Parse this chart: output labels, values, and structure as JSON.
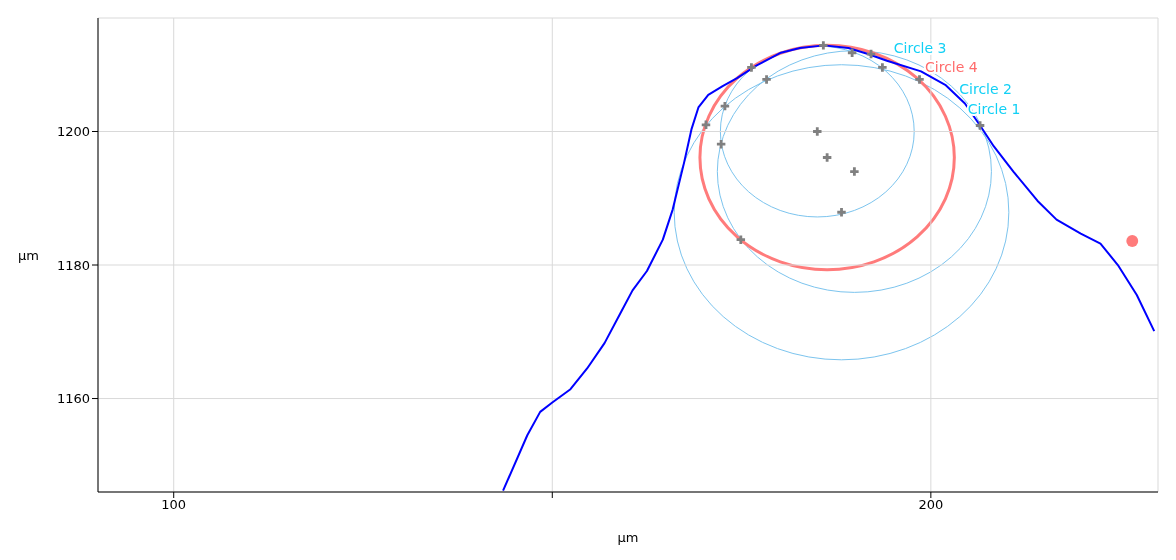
{
  "chart_data": {
    "type": "line",
    "xlabel": "µm",
    "ylabel": "µm",
    "xlim": [
      90,
      230
    ],
    "ylim": [
      1146,
      1217
    ],
    "xticks": [
      100,
      {
        "value": 150,
        "label": null
      },
      200
    ],
    "yticks": [
      1160,
      1180,
      1200
    ],
    "grid": true,
    "legend": false,
    "annotations": [
      "Circle 1",
      "Circle 2",
      "Circle 3",
      "Circle 4"
    ],
    "series": [
      {
        "color": "#0000ff",
        "marker": "none",
        "x": [
          143.5,
          146.7,
          148.4,
          150.0,
          152.4,
          154.6,
          156.9,
          159.1,
          160.6,
          162.5,
          164.6,
          165.9,
          167.4,
          168.4,
          169.3,
          170.6,
          172.5,
          174.4,
          177.0,
          180.2,
          182.7,
          185.9,
          189.1,
          191.7,
          194.2,
          198.7,
          201.9,
          204.5,
          206.5,
          208.3,
          210.9,
          214.1,
          216.6,
          219.8,
          222.4,
          224.7,
          227.2,
          229.5
        ],
        "values": [
          1146.2,
          1154.5,
          1158.0,
          1159.4,
          1161.4,
          1164.5,
          1168.3,
          1173.0,
          1176.2,
          1179.1,
          1183.8,
          1188.3,
          1195.3,
          1200.4,
          1203.6,
          1205.5,
          1206.8,
          1208.0,
          1209.9,
          1211.8,
          1212.5,
          1212.9,
          1212.5,
          1211.6,
          1210.6,
          1209.0,
          1207.0,
          1204.2,
          1200.9,
          1197.8,
          1194.0,
          1189.6,
          1186.8,
          1184.7,
          1183.2,
          1180.0,
          1175.5,
          1170.1
        ]
      },
      {
        "type": "scatter",
        "color": "#808080",
        "marker": "cross",
        "x": [
          170.3,
          172.3,
          172.8,
          174.9,
          176.3,
          178.3,
          185.0,
          185.8,
          186.3,
          188.2,
          189.6,
          189.9,
          192.1,
          193.6,
          198.5,
          206.5
        ],
        "values": [
          1201.0,
          1198.1,
          1203.8,
          1183.8,
          1209.6,
          1207.8,
          1200.0,
          1212.9,
          1196.1,
          1187.9,
          1211.8,
          1194.0,
          1211.6,
          1209.6,
          1207.8,
          1200.9
        ]
      },
      {
        "type": "scatter",
        "color": "#ff7b7b",
        "marker": "circle",
        "x": [
          226.6
        ],
        "values": [
          1183.6
        ]
      }
    ]
  }
}
